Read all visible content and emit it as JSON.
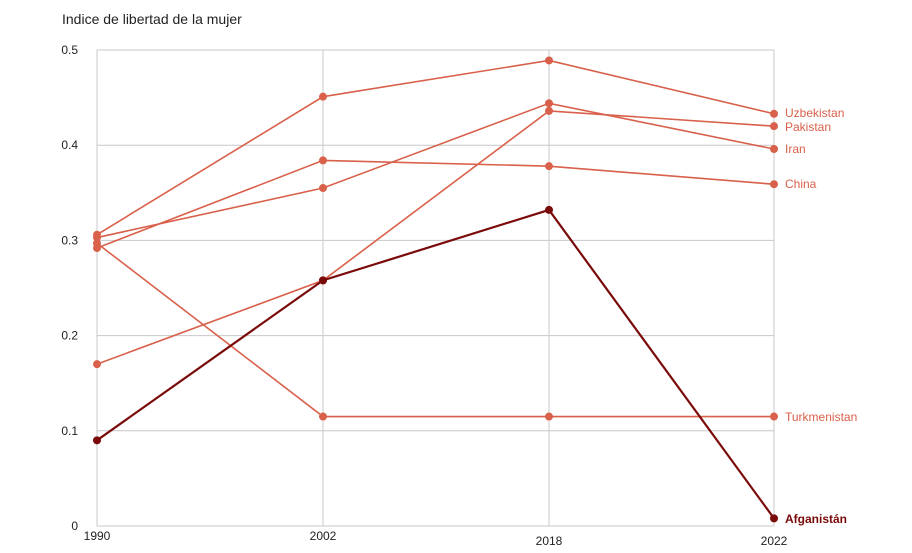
{
  "chart_data": {
    "type": "line",
    "title": "Indice de libertad de la mujer",
    "xlabel": "",
    "ylabel": "",
    "x": [
      "1990",
      "2002",
      "2018",
      "2022"
    ],
    "ylim": [
      0,
      0.5
    ],
    "yticks": [
      "0",
      "0.1",
      "0.2",
      "0.3",
      "0.4",
      "0.5"
    ],
    "grid": true,
    "legend": "direct labels at right end of lines",
    "series": [
      {
        "name": "Uzbekistan",
        "values": [
          0.306,
          0.451,
          0.489,
          0.433
        ],
        "color": "#d9604a"
      },
      {
        "name": "Pakistan",
        "values": [
          0.17,
          0.258,
          0.436,
          0.42
        ],
        "color": "#d9604a"
      },
      {
        "name": "Iran",
        "values": [
          0.303,
          0.355,
          0.444,
          0.396
        ],
        "color": "#d9604a"
      },
      {
        "name": "China",
        "values": [
          0.292,
          0.384,
          0.378,
          0.359
        ],
        "color": "#d9604a"
      },
      {
        "name": "Turkmenistan",
        "values": [
          0.297,
          0.115,
          0.115,
          0.115
        ],
        "color": "#d9604a"
      },
      {
        "name": "Afganistán",
        "values": [
          0.09,
          0.258,
          0.332,
          0.008
        ],
        "color": "#7a0a0a",
        "bold": true
      }
    ]
  }
}
